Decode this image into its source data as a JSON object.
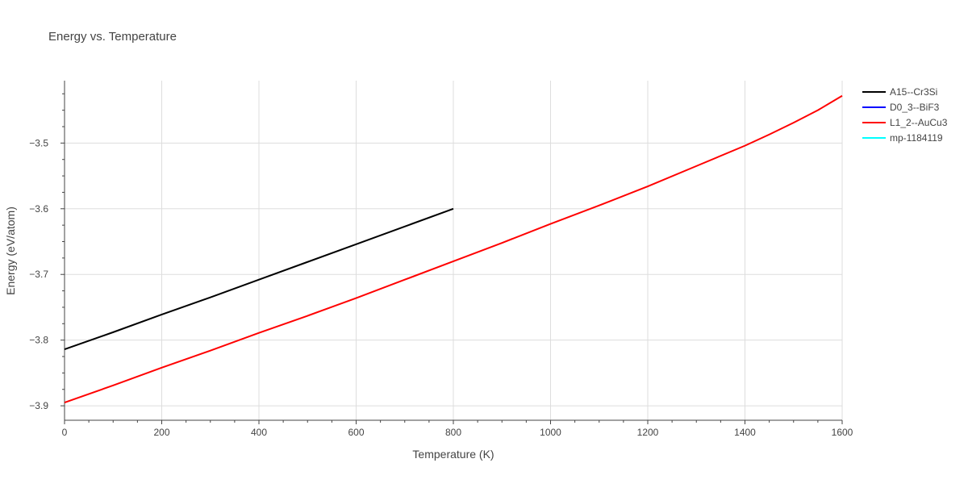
{
  "chart_data": {
    "type": "line",
    "title": "Energy vs. Temperature",
    "xlabel": "Temperature (K)",
    "ylabel": "Energy (eV/atom)",
    "xlim": [
      0,
      1600
    ],
    "ylim": [
      -3.922,
      -3.405
    ],
    "xticks": [
      0,
      200,
      400,
      600,
      800,
      1000,
      1200,
      1400,
      1600
    ],
    "xtick_labels": [
      "0",
      "200",
      "400",
      "600",
      "800",
      "1000",
      "1200",
      "1400",
      "1600"
    ],
    "yticks": [
      -3.9,
      -3.8,
      -3.7,
      -3.6,
      -3.5
    ],
    "ytick_labels": [
      "−3.9",
      "−3.8",
      "−3.7",
      "−3.6",
      "−3.5"
    ],
    "grid": true,
    "legend_position": "top-right",
    "series": [
      {
        "name": "A15--Cr3Si",
        "color": "#000000",
        "x": [
          0,
          100,
          200,
          300,
          400,
          500,
          600,
          700,
          800
        ],
        "y": [
          -3.814,
          -3.788,
          -3.761,
          -3.735,
          -3.708,
          -3.681,
          -3.654,
          -3.627,
          -3.6
        ]
      },
      {
        "name": "D0_3--BiF3",
        "color": "#0000ff",
        "x": [],
        "y": []
      },
      {
        "name": "L1_2--AuCu3",
        "color": "#ff0000",
        "x": [
          0,
          100,
          200,
          300,
          400,
          500,
          600,
          700,
          800,
          900,
          1000,
          1100,
          1200,
          1300,
          1400,
          1450,
          1500,
          1550,
          1600
        ],
        "y": [
          -3.895,
          -3.869,
          -3.842,
          -3.816,
          -3.789,
          -3.763,
          -3.736,
          -3.708,
          -3.68,
          -3.652,
          -3.623,
          -3.595,
          -3.566,
          -3.535,
          -3.504,
          -3.487,
          -3.469,
          -3.45,
          -3.428
        ]
      },
      {
        "name": "mp-1184119",
        "color": "#00ffff",
        "x": [],
        "y": []
      }
    ]
  }
}
